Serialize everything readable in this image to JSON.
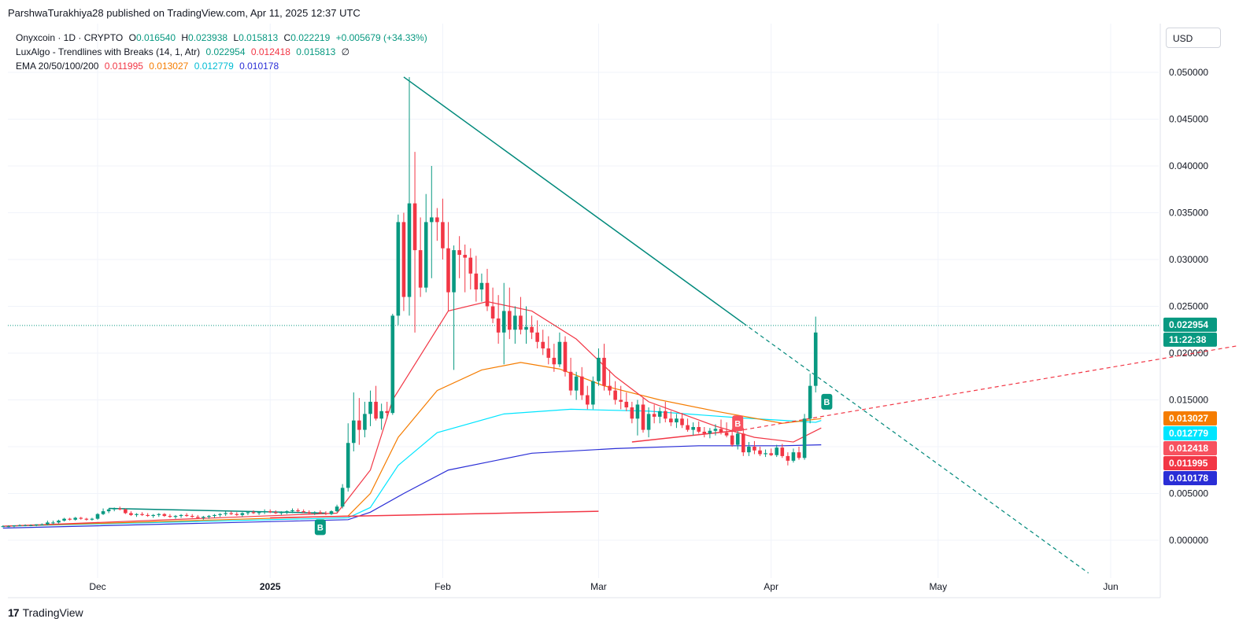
{
  "publish_line": "ParshwaTurakhiya28 published on TradingView.com, Apr 11, 2025 12:37 UTC",
  "legend": {
    "symbol": "Onyxcoin · 1D · CRYPTO",
    "ohlc": {
      "o_label": "O",
      "o": "0.016540",
      "h_label": "H",
      "h": "0.023938",
      "l_label": "L",
      "l": "0.015813",
      "c_label": "C",
      "c": "0.022219",
      "change": "+0.005679 (+34.33%)"
    },
    "indicator1": {
      "name": "LuxAlgo - Trendlines with Breaks (14, 1, Atr)",
      "v1": "0.022954",
      "v2": "0.012418",
      "v3": "0.015813",
      "v4": "∅"
    },
    "indicator2": {
      "name": "EMA 20/50/100/200",
      "v1": "0.011995",
      "v2": "0.013027",
      "v3": "0.012779",
      "v4": "0.010178"
    }
  },
  "currency_button": "USD",
  "footer_brand": "TradingView",
  "colors": {
    "up": "#089981",
    "down": "#f23645",
    "ema20": "#f23645",
    "ema50": "#f57c00",
    "ema100": "#00e5ff",
    "ema200": "#2a2ed6",
    "trendline": "#00897b"
  },
  "price_axis": {
    "ticks": [
      "0.050000",
      "0.045000",
      "0.040000",
      "0.035000",
      "0.030000",
      "0.025000",
      "0.020000",
      "0.015000",
      "0.005000",
      "0.000000"
    ],
    "current_price": "0.022954",
    "countdown": "11:22:38",
    "labels": [
      {
        "text": "0.013027",
        "color": "#f57c00"
      },
      {
        "text": "0.012779",
        "color": "#00e5ff"
      },
      {
        "text": "0.012418",
        "color": "#f7525f"
      },
      {
        "text": "0.011995",
        "color": "#f23645"
      },
      {
        "text": "0.010178",
        "color": "#2a2ed6"
      }
    ]
  },
  "time_axis": {
    "ticks": [
      "Dec",
      "2025",
      "Feb",
      "Mar",
      "Apr",
      "May",
      "Jun"
    ]
  },
  "chart_data": {
    "type": "candlestick",
    "symbol": "Onyxcoin",
    "interval": "1D",
    "ylim": [
      -0.0017,
      0.0525
    ],
    "xlim": [
      "2024-11-14",
      "2025-06-20"
    ],
    "y_ticks": [
      0.05,
      0.045,
      0.04,
      0.035,
      0.03,
      0.025,
      0.02,
      0.015,
      0.005,
      0.0
    ],
    "x_ticks": [
      {
        "label": "Dec",
        "date": "2024-12-01"
      },
      {
        "label": "2025",
        "date": "2025-01-01"
      },
      {
        "label": "Feb",
        "date": "2025-02-01"
      },
      {
        "label": "Mar",
        "date": "2025-03-01"
      },
      {
        "label": "Apr",
        "date": "2025-04-01"
      },
      {
        "label": "May",
        "date": "2025-05-01"
      },
      {
        "label": "Jun",
        "date": "2025-06-01"
      }
    ],
    "start_date": "2024-11-14",
    "candles": [
      [
        0.0015,
        0.0016,
        0.0014,
        0.0015
      ],
      [
        0.0015,
        0.0016,
        0.0014,
        0.0015
      ],
      [
        0.0015,
        0.0016,
        0.0014,
        0.0016
      ],
      [
        0.0016,
        0.0017,
        0.0015,
        0.0016
      ],
      [
        0.0016,
        0.0017,
        0.0015,
        0.0016
      ],
      [
        0.0016,
        0.0017,
        0.0015,
        0.0016
      ],
      [
        0.0016,
        0.0017,
        0.0015,
        0.0017
      ],
      [
        0.0017,
        0.0018,
        0.0016,
        0.0017
      ],
      [
        0.0017,
        0.0021,
        0.0016,
        0.0019
      ],
      [
        0.0019,
        0.0021,
        0.0017,
        0.0019
      ],
      [
        0.0019,
        0.0022,
        0.0018,
        0.0021
      ],
      [
        0.0021,
        0.0024,
        0.002,
        0.0023
      ],
      [
        0.0023,
        0.0024,
        0.0021,
        0.0022
      ],
      [
        0.0022,
        0.0025,
        0.0021,
        0.0024
      ],
      [
        0.0024,
        0.0025,
        0.0022,
        0.0023
      ],
      [
        0.0023,
        0.0024,
        0.0021,
        0.0022
      ],
      [
        0.0022,
        0.0024,
        0.0021,
        0.0023
      ],
      [
        0.0023,
        0.0029,
        0.0022,
        0.0028
      ],
      [
        0.0028,
        0.0034,
        0.0027,
        0.0031
      ],
      [
        0.0031,
        0.0034,
        0.0029,
        0.0033
      ],
      [
        0.0033,
        0.0035,
        0.0031,
        0.0034
      ],
      [
        0.0034,
        0.0036,
        0.0032,
        0.0033
      ],
      [
        0.0033,
        0.0034,
        0.0028,
        0.0029
      ],
      [
        0.0029,
        0.0031,
        0.0026,
        0.0027
      ],
      [
        0.0027,
        0.0029,
        0.0025,
        0.0028
      ],
      [
        0.0028,
        0.003,
        0.0026,
        0.0027
      ],
      [
        0.0027,
        0.0029,
        0.0025,
        0.0026
      ],
      [
        0.0026,
        0.0028,
        0.0024,
        0.0027
      ],
      [
        0.0027,
        0.0029,
        0.0025,
        0.0028
      ],
      [
        0.0028,
        0.0029,
        0.0025,
        0.0026
      ],
      [
        0.0026,
        0.0028,
        0.0024,
        0.0025
      ],
      [
        0.0025,
        0.0027,
        0.0023,
        0.0026
      ],
      [
        0.0026,
        0.0028,
        0.0024,
        0.0027
      ],
      [
        0.0027,
        0.0029,
        0.0025,
        0.0026
      ],
      [
        0.0026,
        0.0028,
        0.0024,
        0.0025
      ],
      [
        0.0025,
        0.0027,
        0.0023,
        0.0024
      ],
      [
        0.0024,
        0.0026,
        0.0022,
        0.0025
      ],
      [
        0.0025,
        0.0027,
        0.0023,
        0.0026
      ],
      [
        0.0026,
        0.0028,
        0.0024,
        0.0027
      ],
      [
        0.0027,
        0.0029,
        0.0025,
        0.0028
      ],
      [
        0.0028,
        0.0031,
        0.0026,
        0.0029
      ],
      [
        0.0029,
        0.0031,
        0.0027,
        0.0028
      ],
      [
        0.0028,
        0.003,
        0.0026,
        0.0027
      ],
      [
        0.0027,
        0.003,
        0.0025,
        0.0029
      ],
      [
        0.0029,
        0.0031,
        0.0027,
        0.003
      ],
      [
        0.003,
        0.0032,
        0.0028,
        0.0029
      ],
      [
        0.0029,
        0.0031,
        0.0027,
        0.003
      ],
      [
        0.003,
        0.0033,
        0.0028,
        0.0031
      ],
      [
        0.0031,
        0.0033,
        0.0029,
        0.003
      ],
      [
        0.003,
        0.0032,
        0.0028,
        0.0029
      ],
      [
        0.0029,
        0.0031,
        0.0027,
        0.003
      ],
      [
        0.003,
        0.0032,
        0.0028,
        0.0031
      ],
      [
        0.0031,
        0.0034,
        0.0029,
        0.0032
      ],
      [
        0.0032,
        0.0034,
        0.003,
        0.0031
      ],
      [
        0.0031,
        0.0033,
        0.0029,
        0.003
      ],
      [
        0.003,
        0.0032,
        0.0028,
        0.0029
      ],
      [
        0.0029,
        0.0031,
        0.0027,
        0.003
      ],
      [
        0.003,
        0.0032,
        0.0028,
        0.0029
      ],
      [
        0.0029,
        0.0031,
        0.0027,
        0.0028
      ],
      [
        0.0028,
        0.0032,
        0.0027,
        0.0031
      ],
      [
        0.0031,
        0.0038,
        0.003,
        0.0036
      ],
      [
        0.0036,
        0.006,
        0.0034,
        0.0056
      ],
      [
        0.0056,
        0.0125,
        0.0052,
        0.0104
      ],
      [
        0.0104,
        0.0158,
        0.0095,
        0.0128
      ],
      [
        0.0128,
        0.0152,
        0.0102,
        0.0118
      ],
      [
        0.0118,
        0.0148,
        0.011,
        0.0135
      ],
      [
        0.0135,
        0.016,
        0.0122,
        0.0148
      ],
      [
        0.0148,
        0.0165,
        0.0128,
        0.013
      ],
      [
        0.013,
        0.0146,
        0.0118,
        0.0138
      ],
      [
        0.0138,
        0.0148,
        0.013,
        0.0136
      ],
      [
        0.0136,
        0.0242,
        0.0134,
        0.024
      ],
      [
        0.024,
        0.0348,
        0.023,
        0.034
      ],
      [
        0.034,
        0.035,
        0.0245,
        0.026
      ],
      [
        0.026,
        0.0495,
        0.024,
        0.036
      ],
      [
        0.036,
        0.0415,
        0.0222,
        0.031
      ],
      [
        0.031,
        0.0345,
        0.026,
        0.027
      ],
      [
        0.027,
        0.037,
        0.0265,
        0.034
      ],
      [
        0.034,
        0.04,
        0.028,
        0.0345
      ],
      [
        0.0345,
        0.0355,
        0.032,
        0.034
      ],
      [
        0.034,
        0.0365,
        0.03,
        0.0312
      ],
      [
        0.0312,
        0.034,
        0.0245,
        0.0265
      ],
      [
        0.0265,
        0.0315,
        0.0182,
        0.031
      ],
      [
        0.031,
        0.0325,
        0.028,
        0.0305
      ],
      [
        0.0305,
        0.0316,
        0.0265,
        0.0302
      ],
      [
        0.0302,
        0.0312,
        0.0268,
        0.0285
      ],
      [
        0.0285,
        0.0304,
        0.0255,
        0.0268
      ],
      [
        0.0268,
        0.0285,
        0.0255,
        0.0275
      ],
      [
        0.0275,
        0.029,
        0.0245,
        0.025
      ],
      [
        0.025,
        0.027,
        0.0232,
        0.0237
      ],
      [
        0.0237,
        0.0262,
        0.021,
        0.0222
      ],
      [
        0.0222,
        0.0275,
        0.0188,
        0.0245
      ],
      [
        0.0245,
        0.027,
        0.0215,
        0.0225
      ],
      [
        0.0225,
        0.025,
        0.021,
        0.024
      ],
      [
        0.024,
        0.026,
        0.022,
        0.0225
      ],
      [
        0.0225,
        0.025,
        0.021,
        0.0228
      ],
      [
        0.0228,
        0.024,
        0.0215,
        0.0222
      ],
      [
        0.0222,
        0.0235,
        0.0205,
        0.0212
      ],
      [
        0.0212,
        0.0225,
        0.0198,
        0.0205
      ],
      [
        0.0205,
        0.0218,
        0.0188,
        0.0195
      ],
      [
        0.0195,
        0.021,
        0.018,
        0.0188
      ],
      [
        0.0188,
        0.0222,
        0.0185,
        0.0212
      ],
      [
        0.0212,
        0.0218,
        0.0175,
        0.018
      ],
      [
        0.018,
        0.0195,
        0.0155,
        0.016
      ],
      [
        0.016,
        0.018,
        0.015,
        0.0175
      ],
      [
        0.0175,
        0.0185,
        0.015,
        0.0155
      ],
      [
        0.0155,
        0.0165,
        0.014,
        0.0145
      ],
      [
        0.0145,
        0.0175,
        0.014,
        0.017
      ],
      [
        0.017,
        0.0205,
        0.0165,
        0.0195
      ],
      [
        0.0195,
        0.021,
        0.016,
        0.0165
      ],
      [
        0.0165,
        0.0182,
        0.0155,
        0.016
      ],
      [
        0.016,
        0.017,
        0.0145,
        0.015
      ],
      [
        0.015,
        0.0165,
        0.014,
        0.0148
      ],
      [
        0.0148,
        0.0158,
        0.0138,
        0.0142
      ],
      [
        0.0142,
        0.0148,
        0.0125,
        0.013
      ],
      [
        0.013,
        0.015,
        0.0112,
        0.0145
      ],
      [
        0.0145,
        0.0152,
        0.0115,
        0.0118
      ],
      [
        0.0118,
        0.0142,
        0.011,
        0.0135
      ],
      [
        0.0135,
        0.0145,
        0.0125,
        0.0132
      ],
      [
        0.0132,
        0.0142,
        0.0125,
        0.0138
      ],
      [
        0.0138,
        0.0148,
        0.0126,
        0.013
      ],
      [
        0.013,
        0.0138,
        0.0122,
        0.0126
      ],
      [
        0.0126,
        0.0135,
        0.012,
        0.013
      ],
      [
        0.013,
        0.0136,
        0.012,
        0.0123
      ],
      [
        0.0123,
        0.013,
        0.0116,
        0.0118
      ],
      [
        0.0118,
        0.0126,
        0.0112,
        0.0121
      ],
      [
        0.0121,
        0.0127,
        0.0114,
        0.0116
      ],
      [
        0.0116,
        0.0121,
        0.011,
        0.0114
      ],
      [
        0.0114,
        0.012,
        0.0109,
        0.0117
      ],
      [
        0.0117,
        0.0124,
        0.0112,
        0.0119
      ],
      [
        0.0119,
        0.0129,
        0.0113,
        0.0115
      ],
      [
        0.0115,
        0.0126,
        0.011,
        0.0112
      ],
      [
        0.0112,
        0.0119,
        0.01,
        0.0102
      ],
      [
        0.0102,
        0.0118,
        0.0097,
        0.0114
      ],
      [
        0.0114,
        0.012,
        0.009,
        0.0094
      ],
      [
        0.0094,
        0.0105,
        0.009,
        0.01
      ],
      [
        0.01,
        0.0106,
        0.0092,
        0.0096
      ],
      [
        0.0096,
        0.01,
        0.009,
        0.0092
      ],
      [
        0.0092,
        0.0097,
        0.0089,
        0.0093
      ],
      [
        0.0093,
        0.0098,
        0.009,
        0.0091
      ],
      [
        0.0091,
        0.0102,
        0.0089,
        0.0099
      ],
      [
        0.0099,
        0.0103,
        0.0088,
        0.009
      ],
      [
        0.009,
        0.0094,
        0.008,
        0.0085
      ],
      [
        0.0085,
        0.0098,
        0.0083,
        0.0094
      ],
      [
        0.0094,
        0.01,
        0.0086,
        0.0088
      ],
      [
        0.0088,
        0.0135,
        0.0086,
        0.013
      ],
      [
        0.013,
        0.0178,
        0.0125,
        0.0165
      ],
      [
        0.0165,
        0.0239,
        0.0158,
        0.0222
      ]
    ],
    "ema20": [
      [
        0.0015,
        0
      ],
      [
        0.0029,
        60
      ],
      [
        0.0075,
        66
      ],
      [
        0.015,
        70
      ],
      [
        0.0245,
        80
      ],
      [
        0.0255,
        87
      ],
      [
        0.0245,
        95
      ],
      [
        0.0215,
        103
      ],
      [
        0.0175,
        110
      ],
      [
        0.0148,
        116
      ],
      [
        0.0135,
        122
      ],
      [
        0.0122,
        128
      ],
      [
        0.011,
        135
      ],
      [
        0.0105,
        142
      ],
      [
        0.012,
        147
      ]
    ],
    "ema50": [
      [
        0.0015,
        0
      ],
      [
        0.0026,
        62
      ],
      [
        0.005,
        66
      ],
      [
        0.011,
        71
      ],
      [
        0.016,
        78
      ],
      [
        0.0182,
        86
      ],
      [
        0.019,
        93
      ],
      [
        0.0183,
        100
      ],
      [
        0.0165,
        108
      ],
      [
        0.015,
        118
      ],
      [
        0.0138,
        128
      ],
      [
        0.0125,
        140
      ],
      [
        0.013,
        147
      ]
    ],
    "ema100": [
      [
        0.0015,
        0
      ],
      [
        0.0024,
        62
      ],
      [
        0.0035,
        66
      ],
      [
        0.008,
        71
      ],
      [
        0.0115,
        78
      ],
      [
        0.0135,
        90
      ],
      [
        0.014,
        102
      ],
      [
        0.0138,
        116
      ],
      [
        0.0131,
        132
      ],
      [
        0.0126,
        146
      ],
      [
        0.0128,
        147
      ]
    ],
    "ema200": [
      [
        0.0013,
        0
      ],
      [
        0.0022,
        62
      ],
      [
        0.003,
        66
      ],
      [
        0.005,
        72
      ],
      [
        0.0075,
        80
      ],
      [
        0.0093,
        95
      ],
      [
        0.0098,
        110
      ],
      [
        0.0101,
        125
      ],
      [
        0.0101,
        140
      ],
      [
        0.0102,
        147
      ]
    ],
    "trendlines": [
      {
        "kind": "resistance",
        "color": "#00897b",
        "from": [
          "2025-01-25",
          0.0495
        ],
        "to": [
          "2025-03-27",
          0.0232
        ],
        "extension_to": [
          "2025-05-28",
          -0.0035
        ]
      },
      {
        "kind": "support",
        "color": "#f23645",
        "from": [
          "2025-03-07",
          0.0105
        ],
        "to": [
          "2025-03-27",
          0.0118
        ],
        "extension_to": [
          "2025-06-24",
          0.0208
        ]
      },
      {
        "kind": "support",
        "color": "#f23645",
        "from": [
          "2025-01-01",
          0.0024
        ],
        "to": [
          "2025-03-01",
          0.0031
        ]
      },
      {
        "kind": "resistance",
        "color": "#00897b",
        "from": [
          "2024-12-03",
          0.0034
        ],
        "to": [
          "2025-01-11",
          0.0029
        ]
      }
    ],
    "break_markers": [
      {
        "label": "B",
        "date": "2025-01-10",
        "price": 0.0014,
        "type": "bullish"
      },
      {
        "label": "B",
        "date": "2025-03-26",
        "price": 0.0125,
        "type": "bearish"
      },
      {
        "label": "B",
        "date": "2025-04-11",
        "price": 0.0148,
        "type": "bullish"
      }
    ],
    "current_price": 0.022954
  }
}
